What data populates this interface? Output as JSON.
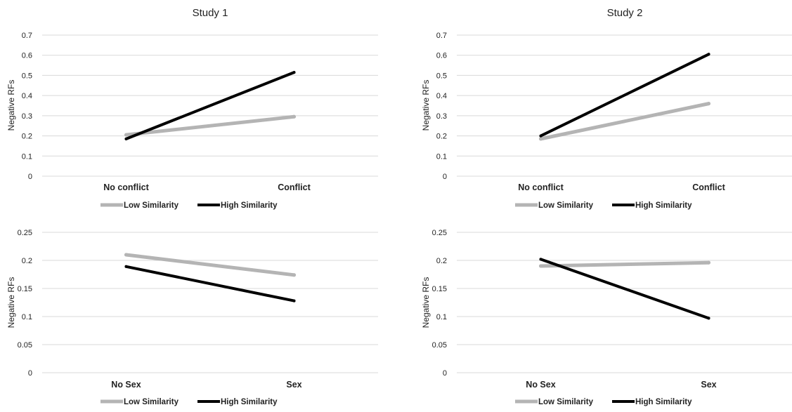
{
  "charts": [
    {
      "chart_data": {
        "type": "line",
        "title": "Study 1",
        "xlabel": "",
        "ylabel": "Negative RFs",
        "categories": [
          "No conflict",
          "Conflict"
        ],
        "ylim": [
          0,
          0.7
        ],
        "yticks": [
          "0",
          "0.1",
          "0.2",
          "0.3",
          "0.4",
          "0.5",
          "0.6",
          "0.7"
        ],
        "grid": true,
        "legend_position": "bottom",
        "series": [
          {
            "name": "Low Similarity",
            "values": [
              0.205,
              0.295
            ],
            "color": "#b4b4b4"
          },
          {
            "name": "High Similarity",
            "values": [
              0.185,
              0.515
            ],
            "color": "#000000"
          }
        ]
      }
    },
    {
      "chart_data": {
        "type": "line",
        "title": "Study 2",
        "xlabel": "",
        "ylabel": "Negative RFs",
        "categories": [
          "No conflict",
          "Conflict"
        ],
        "ylim": [
          0,
          0.7
        ],
        "yticks": [
          "0",
          "0.1",
          "0.2",
          "0.3",
          "0.4",
          "0.5",
          "0.6",
          "0.7"
        ],
        "grid": true,
        "legend_position": "bottom",
        "series": [
          {
            "name": "Low Similarity",
            "values": [
              0.185,
              0.36
            ],
            "color": "#b4b4b4"
          },
          {
            "name": "High Similarity",
            "values": [
              0.2,
              0.605
            ],
            "color": "#000000"
          }
        ]
      }
    },
    {
      "chart_data": {
        "type": "line",
        "title": "",
        "xlabel": "",
        "ylabel": "Negative RFs",
        "categories": [
          "No Sex",
          "Sex"
        ],
        "ylim": [
          0,
          0.25
        ],
        "yticks": [
          "0",
          "0.05",
          "0.1",
          "0.15",
          "0.2",
          "0.25"
        ],
        "grid": true,
        "legend_position": "bottom",
        "series": [
          {
            "name": "Low Similarity",
            "values": [
              0.21,
              0.174
            ],
            "color": "#b4b4b4"
          },
          {
            "name": "High Similarity",
            "values": [
              0.189,
              0.128
            ],
            "color": "#000000"
          }
        ]
      }
    },
    {
      "chart_data": {
        "type": "line",
        "title": "",
        "xlabel": "",
        "ylabel": "Negative RFs",
        "categories": [
          "No Sex",
          "Sex"
        ],
        "ylim": [
          0,
          0.25
        ],
        "yticks": [
          "0",
          "0.05",
          "0.1",
          "0.15",
          "0.2",
          "0.25"
        ],
        "grid": true,
        "legend_position": "bottom",
        "series": [
          {
            "name": "Low Similarity",
            "values": [
              0.19,
              0.196
            ],
            "color": "#b4b4b4"
          },
          {
            "name": "High Similarity",
            "values": [
              0.202,
              0.097
            ],
            "color": "#000000"
          }
        ]
      }
    }
  ]
}
